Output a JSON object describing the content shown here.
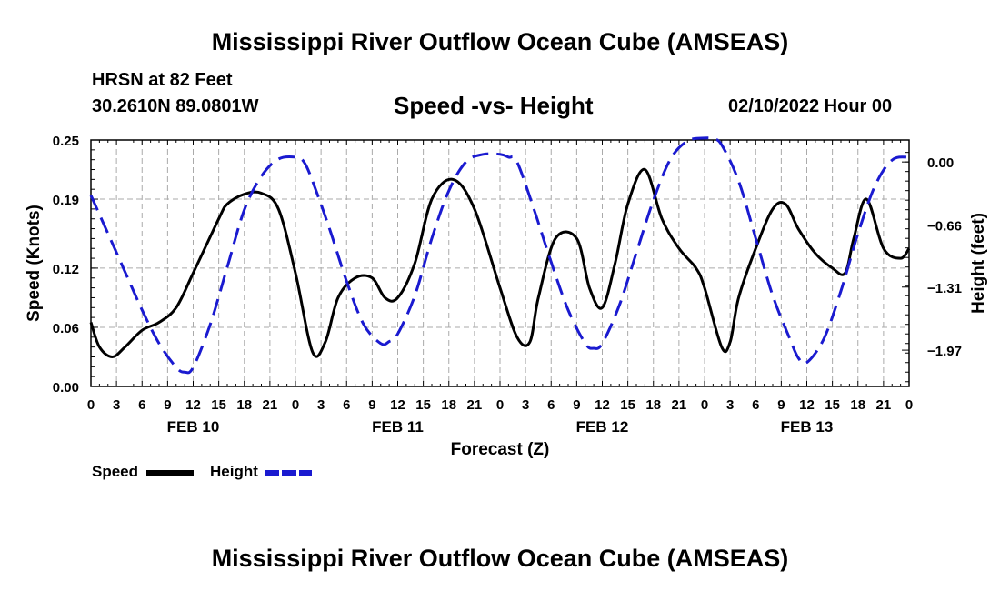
{
  "page": {
    "title": "Mississippi River Outflow Ocean Cube (AMSEAS)",
    "footer_title": "Mississippi River Outflow Ocean Cube (AMSEAS)",
    "station": "HRSN at 82 Feet",
    "location": "30.2610N  89.0801W",
    "subtitle": "Speed -vs- Height",
    "date": "02/10/2022 Hour 00"
  },
  "chart_data": {
    "type": "line",
    "title": "Speed -vs- Height",
    "xlabel": "Forecast (Z)",
    "ylabel": "Speed (Knots)",
    "ylabel_right": "Height (feet)",
    "x_unit": "hours from 02/10 00Z",
    "xlim": [
      0,
      96
    ],
    "ylim": [
      0,
      0.25
    ],
    "ylim_right": [
      -2.35,
      0.23
    ],
    "yticks": [
      0.0,
      0.06,
      0.12,
      0.19,
      0.25
    ],
    "ytick_labels": [
      "0.00",
      "0.06",
      "0.12",
      "0.19",
      "0.25"
    ],
    "yticks_right": [
      0.0,
      -0.66,
      -1.31,
      -1.97
    ],
    "ytick_right_labels": [
      "0.00",
      "−0.66",
      "−1.31",
      "−1.97"
    ],
    "xticks": [
      0,
      3,
      6,
      9,
      12,
      15,
      18,
      21,
      24,
      27,
      30,
      33,
      36,
      39,
      42,
      45,
      48,
      51,
      54,
      57,
      60,
      63,
      66,
      69,
      72,
      75,
      78,
      81,
      84,
      87,
      90,
      93,
      96
    ],
    "xtick_labels": [
      "0",
      "3",
      "6",
      "9",
      "12",
      "15",
      "18",
      "21",
      "0",
      "3",
      "6",
      "9",
      "12",
      "15",
      "18",
      "21",
      "0",
      "3",
      "6",
      "9",
      "12",
      "15",
      "18",
      "21",
      "0",
      "3",
      "6",
      "9",
      "12",
      "15",
      "18",
      "21",
      "0"
    ],
    "day_labels": [
      {
        "label": "FEB 10",
        "hour": 12
      },
      {
        "label": "FEB 11",
        "hour": 36
      },
      {
        "label": "FEB 12",
        "hour": 60
      },
      {
        "label": "FEB 13",
        "hour": 84
      }
    ],
    "grid": true,
    "legend_position": "bottom-left",
    "series": [
      {
        "name": "Speed",
        "axis": "left",
        "color": "#000000",
        "dash": "solid",
        "x": [
          0,
          1,
          2.5,
          4,
          6,
          8,
          10,
          12,
          15,
          16,
          18,
          20,
          22,
          24,
          26,
          27.5,
          29,
          31,
          33,
          34.5,
          36,
          38,
          40,
          42.5,
          45,
          48,
          50,
          51.5,
          52.5,
          54.5,
          57,
          58.5,
          60,
          61.5,
          63,
          65,
          67,
          69,
          71,
          72,
          74,
          75,
          76,
          78,
          80,
          81.5,
          83,
          85,
          87,
          88.5,
          89.5,
          91,
          93,
          95,
          96
        ],
        "values": [
          0.065,
          0.04,
          0.03,
          0.04,
          0.057,
          0.065,
          0.08,
          0.115,
          0.17,
          0.185,
          0.195,
          0.196,
          0.18,
          0.115,
          0.035,
          0.045,
          0.09,
          0.11,
          0.11,
          0.09,
          0.09,
          0.125,
          0.19,
          0.21,
          0.18,
          0.1,
          0.05,
          0.045,
          0.09,
          0.15,
          0.15,
          0.1,
          0.08,
          0.125,
          0.185,
          0.22,
          0.17,
          0.14,
          0.12,
          0.1,
          0.04,
          0.045,
          0.09,
          0.14,
          0.18,
          0.185,
          0.16,
          0.135,
          0.12,
          0.115,
          0.15,
          0.19,
          0.14,
          0.13,
          0.14
        ]
      },
      {
        "name": "Height",
        "axis": "right",
        "color": "#1a1ad0",
        "dash": "dashed",
        "x": [
          0,
          2,
          4,
          6,
          8,
          10,
          11,
          12,
          14,
          16,
          18,
          20,
          22,
          24,
          25,
          26,
          28,
          30,
          32,
          34,
          35,
          36,
          38,
          40,
          42,
          44,
          46,
          48,
          49,
          50,
          52,
          54,
          56,
          58,
          59,
          60,
          62,
          64,
          66,
          68,
          70,
          72,
          73,
          74,
          76,
          78,
          80,
          82,
          83,
          84,
          86,
          88,
          90,
          92,
          94,
          96
        ],
        "values": [
          -0.35,
          -0.75,
          -1.15,
          -1.55,
          -1.9,
          -2.15,
          -2.2,
          -2.15,
          -1.7,
          -1.1,
          -0.5,
          -0.15,
          0.03,
          0.05,
          0.0,
          -0.2,
          -0.7,
          -1.25,
          -1.7,
          -1.9,
          -1.88,
          -1.8,
          -1.4,
          -0.8,
          -0.3,
          0.0,
          0.08,
          0.08,
          0.05,
          0.0,
          -0.5,
          -1.05,
          -1.55,
          -1.9,
          -1.95,
          -1.9,
          -1.5,
          -0.95,
          -0.4,
          0.03,
          0.22,
          0.25,
          0.24,
          0.18,
          -0.2,
          -0.8,
          -1.4,
          -1.85,
          -2.05,
          -2.1,
          -1.85,
          -1.35,
          -0.75,
          -0.25,
          0.02,
          0.05
        ]
      }
    ]
  },
  "legend": {
    "speed_label": "Speed",
    "height_label": "Height"
  },
  "colors": {
    "speed": "#000000",
    "height": "#1a1ad0",
    "grid": "#aaaaaa"
  }
}
